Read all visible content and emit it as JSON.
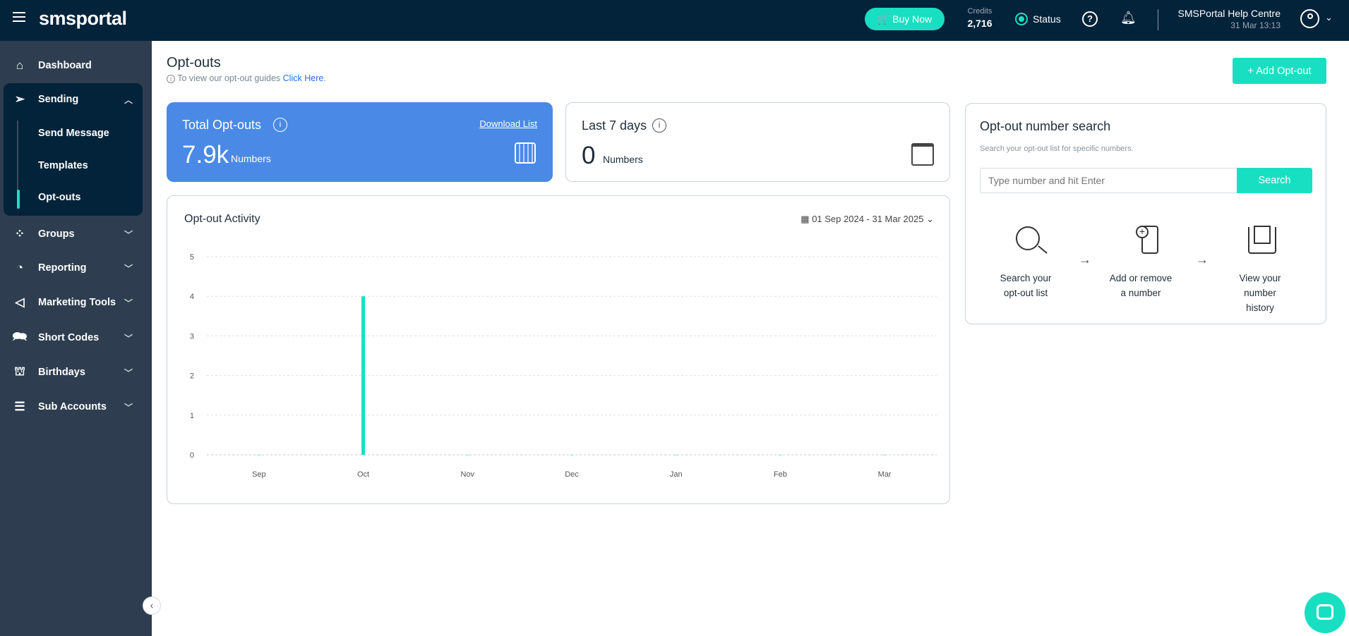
{
  "header": {
    "logo": "smsportal",
    "buy_now": "Buy Now",
    "credits_label": "Credits",
    "credits_value": "2,716",
    "status": "Status",
    "help_centre": "SMSPortal Help Centre",
    "datetime": "31 Mar 13:13"
  },
  "sidebar": {
    "items": [
      {
        "label": "Dashboard",
        "icon": "home-icon"
      },
      {
        "label": "Sending",
        "icon": "send-icon",
        "expanded": true,
        "children": [
          {
            "label": "Send Message"
          },
          {
            "label": "Templates"
          },
          {
            "label": "Opt-outs",
            "active": true
          }
        ]
      },
      {
        "label": "Groups",
        "icon": "groups-icon"
      },
      {
        "label": "Reporting",
        "icon": "pie-chart-icon"
      },
      {
        "label": "Marketing Tools",
        "icon": "megaphone-icon"
      },
      {
        "label": "Short Codes",
        "icon": "chat-icon"
      },
      {
        "label": "Birthdays",
        "icon": "cake-icon"
      },
      {
        "label": "Sub Accounts",
        "icon": "list-icon"
      }
    ]
  },
  "page": {
    "title": "Opt-outs",
    "guide_text": "To view our opt-out guides",
    "guide_link": "Click Here",
    "guide_end": ".",
    "add_button": "+ Add Opt-out"
  },
  "total": {
    "title": "Total Opt-outs",
    "download": "Download List",
    "value": "7.9k",
    "unit": "Numbers"
  },
  "last7": {
    "title": "Last 7 days",
    "value": "0",
    "unit": "Numbers"
  },
  "activity": {
    "title": "Opt-out Activity",
    "date_range": "01 Sep 2024 - 31 Mar 2025"
  },
  "search": {
    "title": "Opt-out number search",
    "subtitle": "Search your opt-out list for specific numbers.",
    "placeholder": "Type number and hit Enter",
    "button": "Search",
    "steps": [
      {
        "l1": "Search your",
        "l2": "opt-out list"
      },
      {
        "l1": "Add or remove",
        "l2": "a number"
      },
      {
        "l1": "View your",
        "l2": "number",
        "l3": "history"
      }
    ]
  },
  "colors": {
    "header": "#03233a",
    "sidebar": "#2e3e50",
    "accent": "#19dfc2",
    "card_blue": "#4a8ae6"
  },
  "chart_data": {
    "type": "bar",
    "categories": [
      "Sep",
      "Oct",
      "Nov",
      "Dec",
      "Jan",
      "Feb",
      "Mar"
    ],
    "values": [
      0,
      4,
      0,
      0,
      0,
      0,
      0
    ],
    "yticks": [
      "0",
      "1",
      "2",
      "3",
      "4",
      "5"
    ],
    "ylim": [
      0,
      5
    ],
    "grid": true,
    "color": "#19dfc2"
  }
}
